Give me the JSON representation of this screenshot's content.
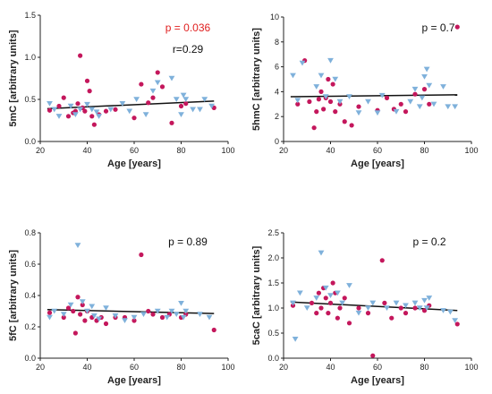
{
  "colors": {
    "group_a": "#c4175c",
    "group_b": "#7fb1db",
    "annotation_highlight": "#e02020"
  },
  "chart_data": [
    {
      "type": "scatter",
      "ylabel": "5mC [arbitrary units]",
      "xlabel": "Age [years]",
      "xlim": [
        20,
        100
      ],
      "ylim": [
        0,
        1.5
      ],
      "xticks": [
        "20",
        "40",
        "60",
        "80",
        "100"
      ],
      "yticks": [
        "0.0",
        "0.5",
        "1.0",
        "1.5"
      ],
      "annotations": [
        {
          "text": "p = 0.036",
          "highlight": true
        },
        {
          "text": "r=0.29",
          "highlight": false
        }
      ],
      "regression": {
        "x": [
          23,
          94
        ],
        "y": [
          0.39,
          0.48
        ]
      },
      "series": [
        {
          "marker": "circle",
          "color": "#c4175c",
          "points": [
            [
              24,
              0.37
            ],
            [
              28,
              0.42
            ],
            [
              30,
              0.52
            ],
            [
              32,
              0.3
            ],
            [
              34,
              0.34
            ],
            [
              35,
              0.36
            ],
            [
              36,
              0.45
            ],
            [
              37,
              1.02
            ],
            [
              38,
              0.4
            ],
            [
              39,
              0.36
            ],
            [
              40,
              0.72
            ],
            [
              41,
              0.6
            ],
            [
              42,
              0.3
            ],
            [
              43,
              0.2
            ],
            [
              45,
              0.32
            ],
            [
              48,
              0.36
            ],
            [
              52,
              0.38
            ],
            [
              60,
              0.28
            ],
            [
              63,
              0.68
            ],
            [
              66,
              0.46
            ],
            [
              68,
              0.52
            ],
            [
              70,
              0.82
            ],
            [
              72,
              0.65
            ],
            [
              76,
              0.22
            ],
            [
              80,
              0.42
            ],
            [
              82,
              0.45
            ],
            [
              94,
              0.4
            ]
          ]
        },
        {
          "marker": "triangle",
          "color": "#7fb1db",
          "points": [
            [
              24,
              0.45
            ],
            [
              26,
              0.38
            ],
            [
              28,
              0.3
            ],
            [
              33,
              0.42
            ],
            [
              35,
              0.32
            ],
            [
              37,
              0.38
            ],
            [
              40,
              0.44
            ],
            [
              42,
              0.38
            ],
            [
              44,
              0.35
            ],
            [
              45,
              0.3
            ],
            [
              50,
              0.38
            ],
            [
              55,
              0.45
            ],
            [
              58,
              0.36
            ],
            [
              61,
              0.5
            ],
            [
              65,
              0.32
            ],
            [
              68,
              0.6
            ],
            [
              70,
              0.7
            ],
            [
              76,
              0.75
            ],
            [
              78,
              0.5
            ],
            [
              80,
              0.32
            ],
            [
              81,
              0.55
            ],
            [
              82,
              0.5
            ],
            [
              85,
              0.38
            ],
            [
              88,
              0.38
            ],
            [
              90,
              0.5
            ],
            [
              93,
              0.42
            ]
          ]
        }
      ]
    },
    {
      "type": "scatter",
      "ylabel": "5hmC [arbitrary units]",
      "xlabel": "Age [years]",
      "xlim": [
        20,
        100
      ],
      "ylim": [
        0,
        10
      ],
      "xticks": [
        "20",
        "40",
        "60",
        "80",
        "100"
      ],
      "yticks": [
        "0",
        "2",
        "4",
        "6",
        "8",
        "10"
      ],
      "annotations": [
        {
          "text": "p = 0.7",
          "highlight": false
        }
      ],
      "regression": {
        "x": [
          23,
          94
        ],
        "y": [
          3.6,
          3.75
        ]
      },
      "series": [
        {
          "marker": "circle",
          "color": "#c4175c",
          "points": [
            [
              26,
              3.0
            ],
            [
              29,
              6.5
            ],
            [
              31,
              3.2
            ],
            [
              33,
              1.1
            ],
            [
              34,
              2.4
            ],
            [
              35,
              3.4
            ],
            [
              36,
              4.0
            ],
            [
              37,
              2.6
            ],
            [
              38,
              3.5
            ],
            [
              39,
              5.0
            ],
            [
              40,
              3.2
            ],
            [
              41,
              4.6
            ],
            [
              42,
              2.4
            ],
            [
              44,
              3.0
            ],
            [
              46,
              1.6
            ],
            [
              49,
              1.3
            ],
            [
              52,
              2.8
            ],
            [
              60,
              2.5
            ],
            [
              64,
              3.5
            ],
            [
              67,
              2.6
            ],
            [
              70,
              3.0
            ],
            [
              72,
              2.4
            ],
            [
              76,
              3.8
            ],
            [
              80,
              4.2
            ],
            [
              82,
              3.0
            ],
            [
              94,
              9.2
            ]
          ]
        },
        {
          "marker": "triangle",
          "color": "#7fb1db",
          "points": [
            [
              24,
              5.3
            ],
            [
              26,
              3.3
            ],
            [
              28,
              6.3
            ],
            [
              34,
              4.4
            ],
            [
              36,
              5.3
            ],
            [
              38,
              3.6
            ],
            [
              40,
              6.5
            ],
            [
              42,
              5.0
            ],
            [
              44,
              3.2
            ],
            [
              48,
              3.6
            ],
            [
              52,
              2.3
            ],
            [
              56,
              3.2
            ],
            [
              60,
              2.3
            ],
            [
              62,
              3.7
            ],
            [
              68,
              2.4
            ],
            [
              74,
              3.2
            ],
            [
              76,
              4.2
            ],
            [
              78,
              2.8
            ],
            [
              79,
              3.5
            ],
            [
              80,
              5.2
            ],
            [
              81,
              5.8
            ],
            [
              82,
              4.5
            ],
            [
              84,
              3.0
            ],
            [
              88,
              4.4
            ],
            [
              90,
              2.8
            ],
            [
              93,
              2.8
            ]
          ]
        }
      ]
    },
    {
      "type": "scatter",
      "ylabel": "5fC [arbitrary units]",
      "xlabel": "Age [years]",
      "xlim": [
        20,
        100
      ],
      "ylim": [
        0,
        0.8
      ],
      "xticks": [
        "20",
        "40",
        "60",
        "80",
        "100"
      ],
      "yticks": [
        "0.0",
        "0.2",
        "0.4",
        "0.6",
        "0.8"
      ],
      "annotations": [
        {
          "text": "p = 0.89",
          "highlight": false
        }
      ],
      "regression": {
        "x": [
          23,
          94
        ],
        "y": [
          0.31,
          0.285
        ]
      },
      "series": [
        {
          "marker": "circle",
          "color": "#c4175c",
          "points": [
            [
              24,
              0.29
            ],
            [
              30,
              0.26
            ],
            [
              32,
              0.32
            ],
            [
              34,
              0.3
            ],
            [
              35,
              0.16
            ],
            [
              36,
              0.39
            ],
            [
              37,
              0.28
            ],
            [
              38,
              0.34
            ],
            [
              39,
              0.24
            ],
            [
              40,
              0.3
            ],
            [
              42,
              0.26
            ],
            [
              44,
              0.24
            ],
            [
              46,
              0.26
            ],
            [
              48,
              0.22
            ],
            [
              52,
              0.26
            ],
            [
              56,
              0.26
            ],
            [
              60,
              0.24
            ],
            [
              63,
              0.66
            ],
            [
              66,
              0.3
            ],
            [
              68,
              0.28
            ],
            [
              72,
              0.26
            ],
            [
              75,
              0.28
            ],
            [
              80,
              0.26
            ],
            [
              82,
              0.28
            ],
            [
              94,
              0.18
            ]
          ]
        },
        {
          "marker": "triangle",
          "color": "#7fb1db",
          "points": [
            [
              24,
              0.26
            ],
            [
              26,
              0.3
            ],
            [
              30,
              0.28
            ],
            [
              33,
              0.34
            ],
            [
              36,
              0.72
            ],
            [
              38,
              0.36
            ],
            [
              40,
              0.3
            ],
            [
              42,
              0.33
            ],
            [
              43,
              0.27
            ],
            [
              45,
              0.25
            ],
            [
              48,
              0.32
            ],
            [
              52,
              0.27
            ],
            [
              56,
              0.24
            ],
            [
              60,
              0.26
            ],
            [
              64,
              0.28
            ],
            [
              70,
              0.3
            ],
            [
              74,
              0.26
            ],
            [
              76,
              0.3
            ],
            [
              78,
              0.28
            ],
            [
              80,
              0.35
            ],
            [
              81,
              0.26
            ],
            [
              82,
              0.3
            ],
            [
              88,
              0.28
            ],
            [
              92,
              0.26
            ]
          ]
        }
      ]
    },
    {
      "type": "scatter",
      "ylabel": "5caC [arbitrary units]",
      "xlabel": "Age [years]",
      "xlim": [
        20,
        100
      ],
      "ylim": [
        0,
        2.5
      ],
      "xticks": [
        "20",
        "40",
        "60",
        "80",
        "100"
      ],
      "yticks": [
        "0.0",
        "0.5",
        "1.0",
        "1.5",
        "2.0",
        "2.5"
      ],
      "annotations": [
        {
          "text": "p = 0.2",
          "highlight": false
        }
      ],
      "regression": {
        "x": [
          23,
          94
        ],
        "y": [
          1.12,
          0.95
        ]
      },
      "series": [
        {
          "marker": "circle",
          "color": "#c4175c",
          "points": [
            [
              24,
              1.05
            ],
            [
              32,
              1.1
            ],
            [
              34,
              0.9
            ],
            [
              35,
              1.3
            ],
            [
              36,
              1.0
            ],
            [
              37,
              1.4
            ],
            [
              38,
              1.2
            ],
            [
              39,
              0.9
            ],
            [
              40,
              1.1
            ],
            [
              41,
              1.5
            ],
            [
              42,
              1.3
            ],
            [
              43,
              0.8
            ],
            [
              44,
              1.0
            ],
            [
              46,
              1.2
            ],
            [
              48,
              0.7
            ],
            [
              52,
              1.0
            ],
            [
              56,
              0.9
            ],
            [
              58,
              0.05
            ],
            [
              62,
              1.95
            ],
            [
              63,
              1.1
            ],
            [
              66,
              0.8
            ],
            [
              70,
              1.0
            ],
            [
              72,
              0.9
            ],
            [
              76,
              1.0
            ],
            [
              80,
              0.95
            ],
            [
              82,
              1.05
            ],
            [
              94,
              0.68
            ]
          ]
        },
        {
          "marker": "triangle",
          "color": "#7fb1db",
          "points": [
            [
              24,
              1.1
            ],
            [
              25,
              0.38
            ],
            [
              27,
              1.3
            ],
            [
              30,
              1.0
            ],
            [
              34,
              1.2
            ],
            [
              36,
              2.1
            ],
            [
              38,
              1.4
            ],
            [
              40,
              1.25
            ],
            [
              43,
              1.3
            ],
            [
              45,
              1.1
            ],
            [
              48,
              1.45
            ],
            [
              52,
              0.9
            ],
            [
              56,
              1.0
            ],
            [
              58,
              1.1
            ],
            [
              64,
              1.0
            ],
            [
              68,
              1.1
            ],
            [
              72,
              1.05
            ],
            [
              76,
              1.1
            ],
            [
              78,
              1.0
            ],
            [
              80,
              1.15
            ],
            [
              81,
              1.0
            ],
            [
              82,
              1.2
            ],
            [
              88,
              0.95
            ],
            [
              91,
              0.92
            ],
            [
              93,
              0.75
            ]
          ]
        }
      ]
    }
  ]
}
